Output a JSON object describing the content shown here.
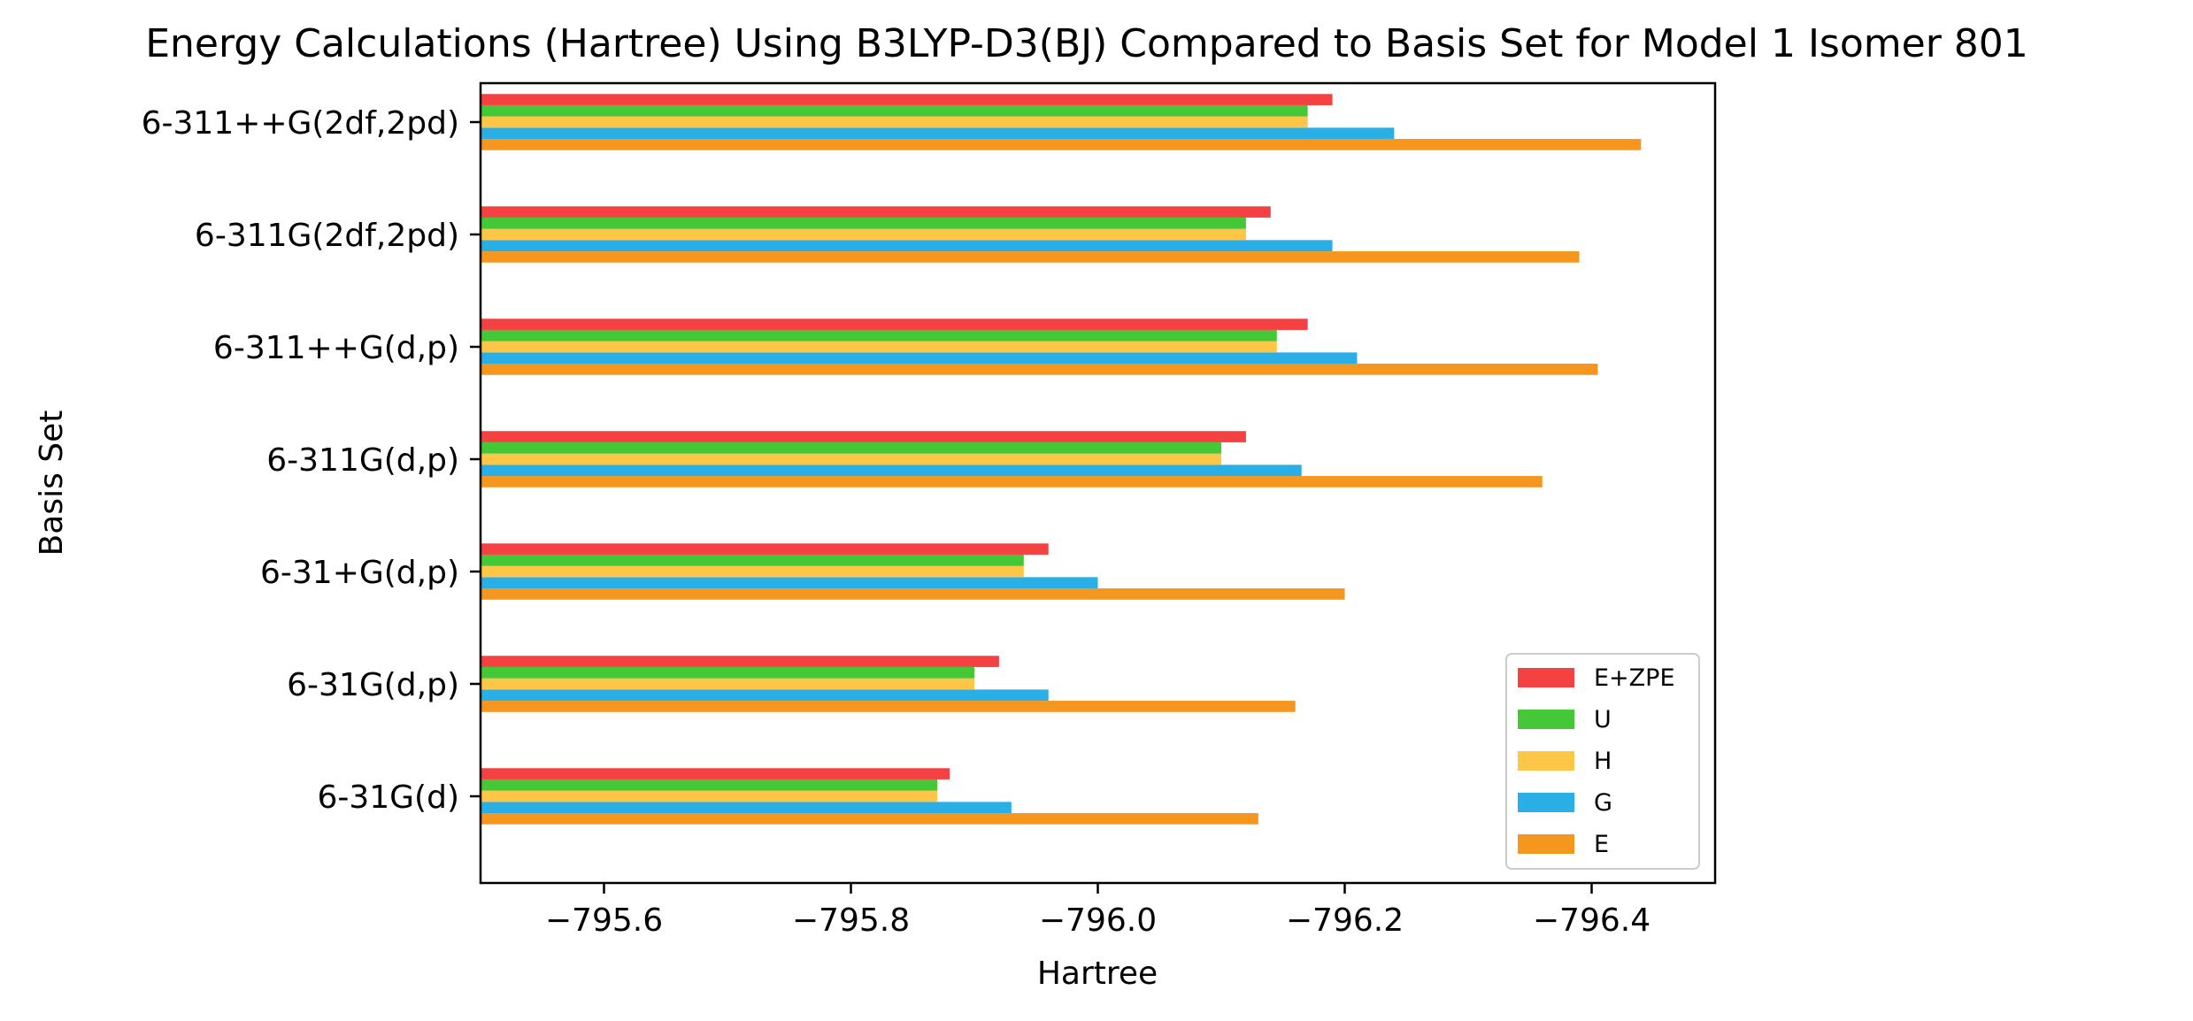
{
  "chart_data": {
    "type": "bar",
    "orientation": "horizontal",
    "title": "Energy Calculations (Hartree) Using B3LYP-D3(BJ) Compared to Basis Set for Model 1 Isomer 801",
    "xlabel": "Hartree",
    "ylabel": "Basis Set",
    "xlim": [
      -795.5,
      -796.5
    ],
    "x_inverted": true,
    "xticks": [
      -795.6,
      -795.8,
      -796.0,
      -796.2,
      -796.4
    ],
    "xtick_labels": [
      "−795.6",
      "−795.8",
      "−796.0",
      "−796.2",
      "−796.4"
    ],
    "grid": false,
    "legend_placement": "lower-right",
    "categories": [
      "6-31G(d)",
      "6-31G(d,p)",
      "6-31+G(d,p)",
      "6-311G(d,p)",
      "6-311++G(d,p)",
      "6-311G(2df,2pd)",
      "6-311++G(2df,2pd)"
    ],
    "series": [
      {
        "name": "E",
        "color": "#f5961e",
        "values": [
          -796.13,
          -796.16,
          -796.2,
          -796.36,
          -796.405,
          -796.39,
          -796.44
        ]
      },
      {
        "name": "G",
        "color": "#29aee6",
        "values": [
          -795.93,
          -795.96,
          -796.0,
          -796.165,
          -796.21,
          -796.19,
          -796.24
        ]
      },
      {
        "name": "H",
        "color": "#fdc646",
        "values": [
          -795.87,
          -795.9,
          -795.94,
          -796.1,
          -796.145,
          -796.12,
          -796.17
        ]
      },
      {
        "name": "U",
        "color": "#44c838",
        "values": [
          -795.87,
          -795.9,
          -795.94,
          -796.1,
          -796.145,
          -796.12,
          -796.17
        ]
      },
      {
        "name": "E+ZPE",
        "color": "#f44242",
        "values": [
          -795.88,
          -795.92,
          -795.96,
          -796.12,
          -796.17,
          -796.14,
          -796.19
        ]
      }
    ],
    "legend_order": [
      "E+ZPE",
      "U",
      "H",
      "G",
      "E"
    ]
  }
}
